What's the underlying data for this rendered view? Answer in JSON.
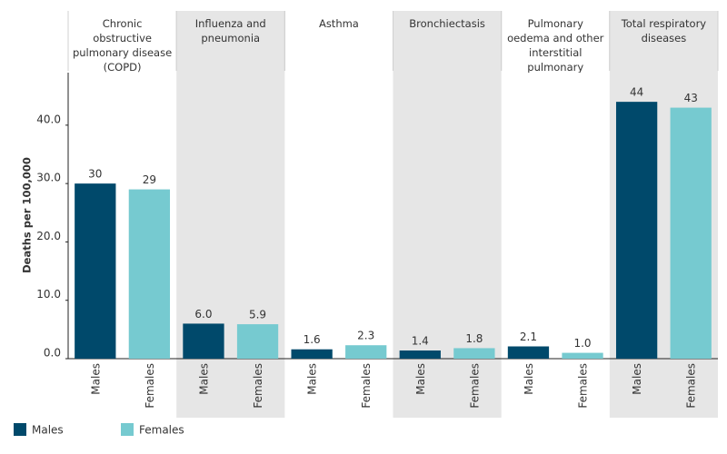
{
  "chart_data": {
    "type": "bar",
    "y_label": "Deaths per 100,000",
    "facets": [
      "Chronic obstructive pulmonary disease (COPD)",
      "Influenza and pneumonia",
      "Asthma",
      "Bronchiectasis",
      "Pulmonary oedema and other interstitial pulmonary diseases",
      "Total respiratory diseases"
    ],
    "series": [
      {
        "name": "Males",
        "color": "#00496b",
        "values": [
          30,
          6.0,
          1.6,
          1.4,
          2.1,
          44
        ],
        "value_labels": [
          "30",
          "6.0",
          "1.6",
          "1.4",
          "2.1",
          "44"
        ]
      },
      {
        "name": "Females",
        "color": "#76cad0",
        "values": [
          29,
          5.9,
          2.3,
          1.8,
          1.0,
          43
        ],
        "value_labels": [
          "29",
          "5.9",
          "2.3",
          "1.8",
          "1.0",
          "43"
        ]
      }
    ],
    "ylim": [
      0,
      49
    ],
    "yticks": [
      {
        "value": 0,
        "label": "0.0"
      },
      {
        "value": 10,
        "label": "10.0"
      },
      {
        "value": 20,
        "label": "20.0"
      },
      {
        "value": 30,
        "label": "30.0"
      },
      {
        "value": 40,
        "label": "40.0"
      }
    ],
    "grid": false,
    "shade_alternate": true
  }
}
